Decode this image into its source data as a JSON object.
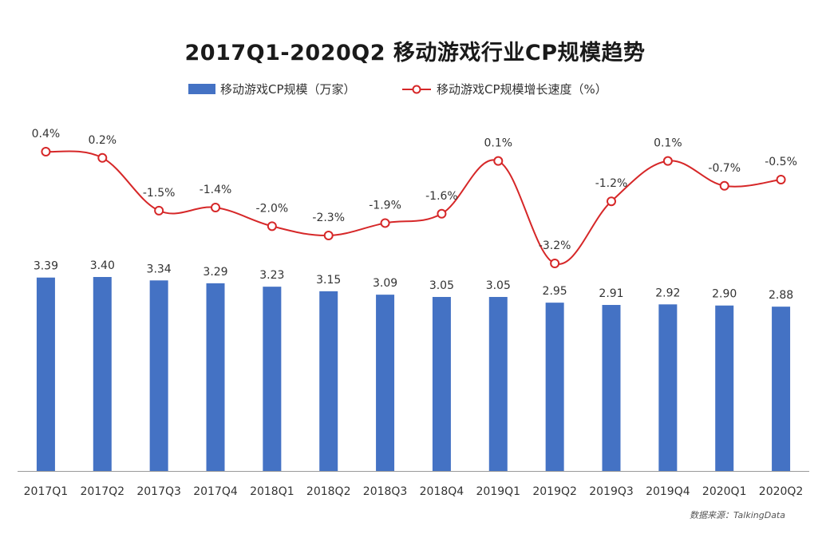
{
  "colors": {
    "bar": "#4472C4",
    "line": "#D62728",
    "marker_fill": "#ffffff",
    "axis": "#999999"
  },
  "chart_data": {
    "type": "bar+line",
    "title": "2017Q1-2020Q2  移动游戏行业CP规模趋势",
    "categories": [
      "2017Q1",
      "2017Q2",
      "2017Q3",
      "2017Q4",
      "2018Q1",
      "2018Q2",
      "2018Q3",
      "2018Q4",
      "2019Q1",
      "2019Q2",
      "2019Q3",
      "2019Q4",
      "2020Q1",
      "2020Q2"
    ],
    "series": [
      {
        "name": "移动游戏CP规模（万家）",
        "type": "bar",
        "values": [
          3.39,
          3.4,
          3.34,
          3.29,
          3.23,
          3.15,
          3.09,
          3.05,
          3.05,
          2.95,
          2.91,
          2.92,
          2.9,
          2.88
        ],
        "labels": [
          "3.39",
          "3.40",
          "3.34",
          "3.29",
          "3.23",
          "3.15",
          "3.09",
          "3.05",
          "3.05",
          "2.95",
          "2.91",
          "2.92",
          "2.90",
          "2.88"
        ]
      },
      {
        "name": "移动游戏CP规模增长速度（%）",
        "type": "line",
        "values": [
          0.4,
          0.2,
          -1.5,
          -1.4,
          -2.0,
          -2.3,
          -1.9,
          -1.6,
          0.1,
          -3.2,
          -1.2,
          0.1,
          -0.7,
          -0.5
        ],
        "labels": [
          "0.4%",
          "0.2%",
          "-1.5%",
          "-1.4%",
          "-2.0%",
          "-2.3%",
          "-1.9%",
          "-1.6%",
          "0.1%",
          "-3.2%",
          "-1.2%",
          "0.1%",
          "-0.7%",
          "-0.5%"
        ]
      }
    ],
    "legend_position": "top",
    "grid": false,
    "source": "数据来源：TalkingData"
  }
}
